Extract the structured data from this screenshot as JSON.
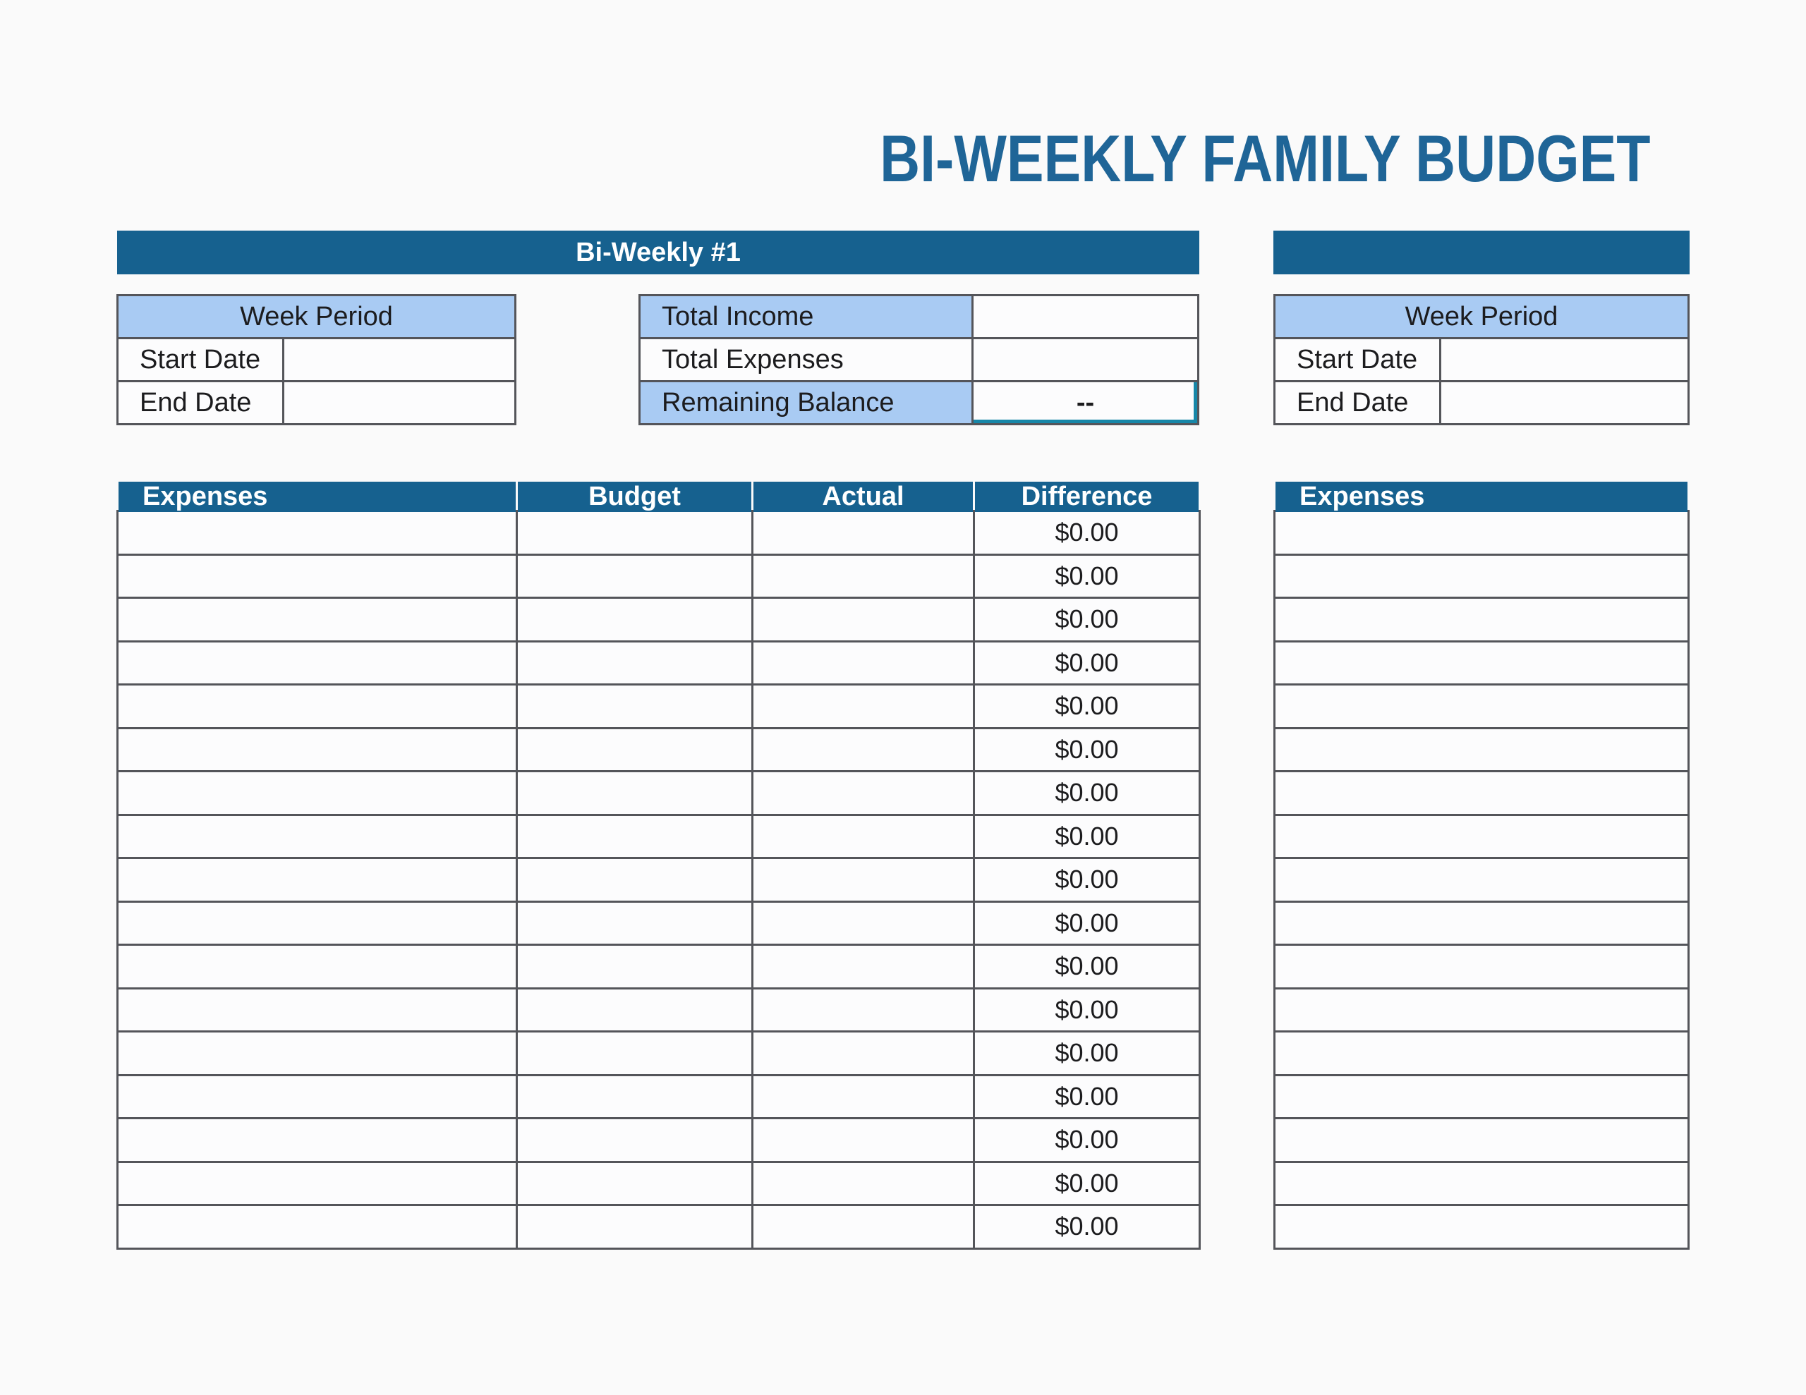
{
  "title": "BI-WEEKLY FAMILY BUDGET",
  "colors": {
    "header_blue": "#16618F",
    "title_blue": "#1F6597",
    "light_blue": "#A9CBF3",
    "border_gray": "#54555A",
    "teal": "#1787A8"
  },
  "section1": {
    "bar_label": "Bi-Weekly #1",
    "week_period": {
      "title": "Week Period",
      "rows": [
        {
          "label": "Start Date",
          "value": ""
        },
        {
          "label": "End Date",
          "value": ""
        }
      ]
    },
    "summary": {
      "rows": [
        {
          "label": "Total Income",
          "value": ""
        },
        {
          "label": "Total Expenses",
          "value": ""
        },
        {
          "label": "Remaining Balance",
          "value": "--"
        }
      ]
    },
    "expenses": {
      "headers": [
        "Expenses",
        "Budget",
        "Actual",
        "Difference"
      ],
      "rows": [
        {
          "expense": "",
          "budget": "",
          "actual": "",
          "difference": "$0.00"
        },
        {
          "expense": "",
          "budget": "",
          "actual": "",
          "difference": "$0.00"
        },
        {
          "expense": "",
          "budget": "",
          "actual": "",
          "difference": "$0.00"
        },
        {
          "expense": "",
          "budget": "",
          "actual": "",
          "difference": "$0.00"
        },
        {
          "expense": "",
          "budget": "",
          "actual": "",
          "difference": "$0.00"
        },
        {
          "expense": "",
          "budget": "",
          "actual": "",
          "difference": "$0.00"
        },
        {
          "expense": "",
          "budget": "",
          "actual": "",
          "difference": "$0.00"
        },
        {
          "expense": "",
          "budget": "",
          "actual": "",
          "difference": "$0.00"
        },
        {
          "expense": "",
          "budget": "",
          "actual": "",
          "difference": "$0.00"
        },
        {
          "expense": "",
          "budget": "",
          "actual": "",
          "difference": "$0.00"
        },
        {
          "expense": "",
          "budget": "",
          "actual": "",
          "difference": "$0.00"
        },
        {
          "expense": "",
          "budget": "",
          "actual": "",
          "difference": "$0.00"
        },
        {
          "expense": "",
          "budget": "",
          "actual": "",
          "difference": "$0.00"
        },
        {
          "expense": "",
          "budget": "",
          "actual": "",
          "difference": "$0.00"
        },
        {
          "expense": "",
          "budget": "",
          "actual": "",
          "difference": "$0.00"
        },
        {
          "expense": "",
          "budget": "",
          "actual": "",
          "difference": "$0.00"
        },
        {
          "expense": "",
          "budget": "",
          "actual": "",
          "difference": "$0.00"
        }
      ]
    }
  },
  "section2": {
    "bar_label": "",
    "week_period": {
      "title": "Week Period",
      "rows": [
        {
          "label": "Start Date",
          "value": ""
        },
        {
          "label": "End Date",
          "value": ""
        }
      ]
    },
    "expenses": {
      "headers": [
        "Expenses"
      ],
      "rows": [
        {
          "expense": ""
        },
        {
          "expense": ""
        },
        {
          "expense": ""
        },
        {
          "expense": ""
        },
        {
          "expense": ""
        },
        {
          "expense": ""
        },
        {
          "expense": ""
        },
        {
          "expense": ""
        },
        {
          "expense": ""
        },
        {
          "expense": ""
        },
        {
          "expense": ""
        },
        {
          "expense": ""
        },
        {
          "expense": ""
        },
        {
          "expense": ""
        },
        {
          "expense": ""
        },
        {
          "expense": ""
        },
        {
          "expense": ""
        }
      ]
    }
  }
}
